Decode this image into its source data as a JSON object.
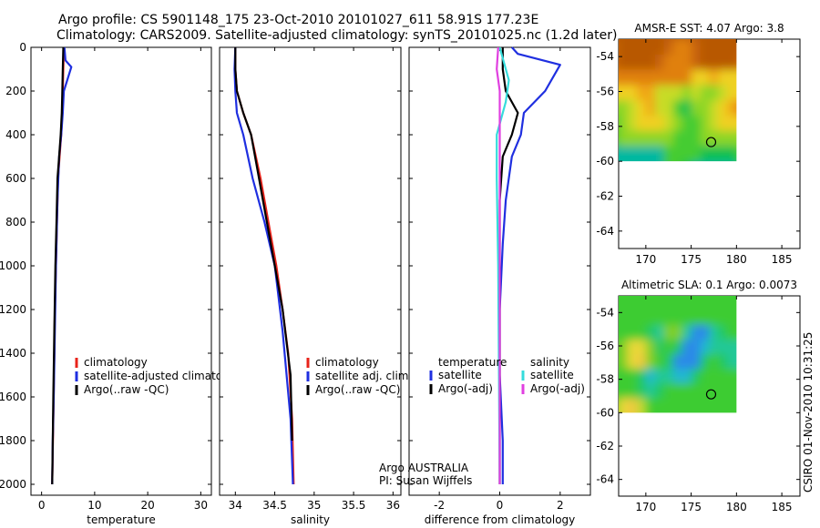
{
  "title": {
    "line1": "Argo profile: CS 5901148_175 23-Oct-2010 20101027_611 58.91S 177.23E",
    "line2": "Climatology: CARS2009. Satellite-adjusted climatology: synTS_20101025.nc (1.2d later)"
  },
  "footer": {
    "timestamp": "CSIRO 01-Nov-2010 10:31:25",
    "argo_credit_line1": "Argo AUSTRALIA",
    "argo_credit_line2": "PI: Susan Wijffels"
  },
  "colors": {
    "climatology": "#e8231a",
    "satellite": "#1f2fe0",
    "argo": "#000000",
    "sal_satellite": "#35dcdc",
    "sal_argo": "#e040e0"
  },
  "chart_data": [
    {
      "id": "temperature",
      "type": "line",
      "xlabel": "temperature",
      "ylabel": "",
      "xlim": [
        -2,
        32
      ],
      "ylim": [
        2050,
        0
      ],
      "xticks": [
        0,
        10,
        20,
        30
      ],
      "xtick_labels": [
        "0",
        "10",
        "20",
        "30"
      ],
      "yticks": [
        0,
        200,
        400,
        600,
        800,
        1000,
        1200,
        1400,
        1600,
        1800,
        2000
      ],
      "ytick_labels": [
        "0",
        "200",
        "400",
        "600",
        "800",
        "1000",
        "1200",
        "1400",
        "1600",
        "1800",
        "2000"
      ],
      "series": [
        {
          "name": "climatology",
          "color": "#e8231a",
          "x": [
            4.2,
            4.1,
            4.0,
            3.9,
            3.7,
            3.4,
            3.1,
            2.9,
            2.7,
            2.5,
            2.4,
            2.2,
            2.0
          ],
          "y": [
            0,
            100,
            200,
            300,
            400,
            500,
            600,
            800,
            1000,
            1200,
            1400,
            1700,
            2000
          ]
        },
        {
          "name": "satellite-adjusted climatology",
          "color": "#1f2fe0",
          "x": [
            4.3,
            4.5,
            5.6,
            4.2,
            4.0,
            3.7,
            3.3,
            3.0,
            2.7,
            2.5,
            2.3,
            2.1,
            2.0
          ],
          "y": [
            0,
            60,
            90,
            200,
            300,
            400,
            500,
            700,
            1000,
            1300,
            1600,
            1800,
            2000
          ]
        },
        {
          "name": "Argo(..raw -QC)",
          "color": "#000000",
          "x": [
            4.1,
            4.0,
            3.9,
            3.8,
            3.6,
            3.3,
            3.0,
            2.8,
            2.6,
            2.4,
            2.2,
            2.0
          ],
          "y": [
            0,
            100,
            200,
            300,
            400,
            500,
            600,
            800,
            1000,
            1300,
            1600,
            2000
          ]
        }
      ],
      "legend": {
        "entries": [
          "climatology",
          "satellite-adjusted climatology",
          "Argo(..raw -QC)"
        ],
        "colors": [
          "#e8231a",
          "#1f2fe0",
          "#000000"
        ],
        "location": "lower-center"
      }
    },
    {
      "id": "salinity",
      "type": "line",
      "xlabel": "salinity",
      "xlim": [
        33.8,
        36.1
      ],
      "ylim": [
        2050,
        0
      ],
      "xticks": [
        34,
        34.5,
        35,
        35.5,
        36
      ],
      "xtick_labels": [
        "34",
        "34.5",
        "35",
        "35.5",
        "36"
      ],
      "series": [
        {
          "name": "climatology",
          "color": "#e8231a",
          "x": [
            34.0,
            34.0,
            34.02,
            34.1,
            34.2,
            34.32,
            34.42,
            34.52,
            34.6,
            34.67,
            34.72,
            34.74
          ],
          "y": [
            0,
            100,
            200,
            300,
            400,
            600,
            800,
            1000,
            1200,
            1400,
            1700,
            2000
          ]
        },
        {
          "name": "satellite adj. clim.",
          "color": "#1f2fe0",
          "x": [
            34.0,
            33.99,
            34.0,
            34.02,
            34.1,
            34.22,
            34.37,
            34.5,
            34.6,
            34.7,
            34.73
          ],
          "y": [
            0,
            100,
            200,
            300,
            400,
            600,
            800,
            1000,
            1300,
            1700,
            2000
          ]
        },
        {
          "name": "Argo(..raw -QC)",
          "color": "#000000",
          "x": [
            34.0,
            34.0,
            34.02,
            34.1,
            34.2,
            34.3,
            34.4,
            34.5,
            34.6,
            34.7,
            34.72
          ],
          "y": [
            0,
            100,
            200,
            300,
            400,
            600,
            800,
            1000,
            1200,
            1500,
            1800
          ]
        }
      ],
      "legend": {
        "entries": [
          "climatology",
          "satellite adj. clim.",
          "Argo(..raw -QC)"
        ],
        "colors": [
          "#e8231a",
          "#1f2fe0",
          "#000000"
        ],
        "location": "lower-right"
      }
    },
    {
      "id": "difference",
      "type": "line",
      "xlabel": "difference from climatology",
      "xlim": [
        -3,
        3
      ],
      "ylim": [
        2050,
        0
      ],
      "xticks": [
        -2,
        0,
        2
      ],
      "xtick_labels": [
        "-2",
        "0",
        "2"
      ],
      "series": [
        {
          "name": "temperature satellite",
          "color": "#1f2fe0",
          "x": [
            0.4,
            0.6,
            2.0,
            1.5,
            0.8,
            0.7,
            0.4,
            0.2,
            0.1,
            0.0,
            0.0,
            0.1,
            0.1
          ],
          "y": [
            0,
            30,
            80,
            200,
            300,
            400,
            500,
            700,
            900,
            1200,
            1500,
            1800,
            2000
          ]
        },
        {
          "name": "temperature Argo(-adj)",
          "color": "#000000",
          "x": [
            0.1,
            0.1,
            0.2,
            0.6,
            0.4,
            0.1,
            0.0,
            0.0,
            0.0
          ],
          "y": [
            0,
            100,
            200,
            300,
            400,
            500,
            700,
            1000,
            2000
          ]
        },
        {
          "name": "salinity satellite",
          "color": "#35dcdc",
          "x": [
            0.0,
            0.1,
            0.3,
            0.2,
            -0.1,
            -0.1,
            -0.05,
            0.0
          ],
          "y": [
            0,
            50,
            150,
            250,
            400,
            600,
            1000,
            2000
          ]
        },
        {
          "name": "salinity Argo(-adj)",
          "color": "#e040e0",
          "x": [
            -0.05,
            -0.1,
            0.0,
            0.0,
            0.0
          ],
          "y": [
            0,
            100,
            200,
            400,
            2000
          ]
        }
      ],
      "legend": {
        "headers": [
          "temperature",
          "salinity"
        ],
        "entries": [
          {
            "label": "satellite",
            "color": "#1f2fe0"
          },
          {
            "label": "Argo(-adj)",
            "color": "#000000"
          },
          {
            "label": "satellite",
            "color": "#35dcdc"
          },
          {
            "label": "Argo(-adj)",
            "color": "#e040e0"
          }
        ],
        "location": "lower-center"
      }
    },
    {
      "id": "sst_map",
      "type": "heatmap",
      "title": "AMSR-E SST: 4.07 Argo: 3.8",
      "xlim": [
        167,
        187
      ],
      "ylim": [
        -65,
        -53
      ],
      "xticks": [
        170,
        175,
        180,
        185
      ],
      "yticks": [
        -54,
        -56,
        -58,
        -60,
        -62,
        -64
      ],
      "data_extent": {
        "lon": [
          167,
          180
        ],
        "lat": [
          -60,
          -53
        ]
      },
      "marker": {
        "lon": 177.2,
        "lat": -58.9
      }
    },
    {
      "id": "sla_map",
      "type": "heatmap",
      "title": "Altimetric SLA: 0.1 Argo: 0.0073",
      "xlim": [
        167,
        187
      ],
      "ylim": [
        -65,
        -53
      ],
      "xticks": [
        170,
        175,
        180,
        185
      ],
      "yticks": [
        -54,
        -56,
        -58,
        -60,
        -62,
        -64
      ],
      "data_extent": {
        "lon": [
          167,
          180
        ],
        "lat": [
          -60,
          -53
        ]
      },
      "marker": {
        "lon": 177.2,
        "lat": -58.9
      }
    }
  ]
}
